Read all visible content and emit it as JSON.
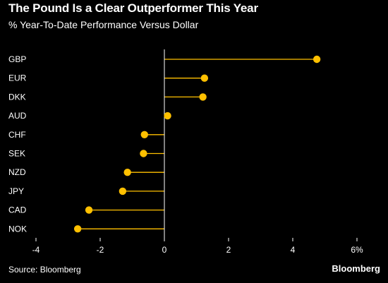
{
  "title": "The Pound Is a Clear Outperformer This Year",
  "subtitle": "% Year-To-Date Performance Versus Dollar",
  "source": "Source: Bloomberg",
  "brand": "Bloomberg",
  "colors": {
    "background": "#000000",
    "accent": "#ffc000",
    "text": "#ffffff",
    "axis": "#ffffff"
  },
  "chart_data": {
    "type": "lollipop",
    "orientation": "horizontal",
    "categories": [
      "GBP",
      "EUR",
      "DKK",
      "AUD",
      "CHF",
      "SEK",
      "NZD",
      "JPY",
      "CAD",
      "NOK"
    ],
    "values": [
      4.75,
      1.25,
      1.2,
      0.1,
      -0.62,
      -0.65,
      -1.15,
      -1.3,
      -2.35,
      -2.7
    ],
    "xlim": [
      -4,
      6
    ],
    "x_ticks": [
      -4,
      -2,
      0,
      2,
      4,
      6
    ],
    "x_tick_labels": [
      "-4",
      "-2",
      "0",
      "2",
      "4",
      "6%"
    ],
    "grid": false,
    "xlabel": "",
    "ylabel": ""
  }
}
